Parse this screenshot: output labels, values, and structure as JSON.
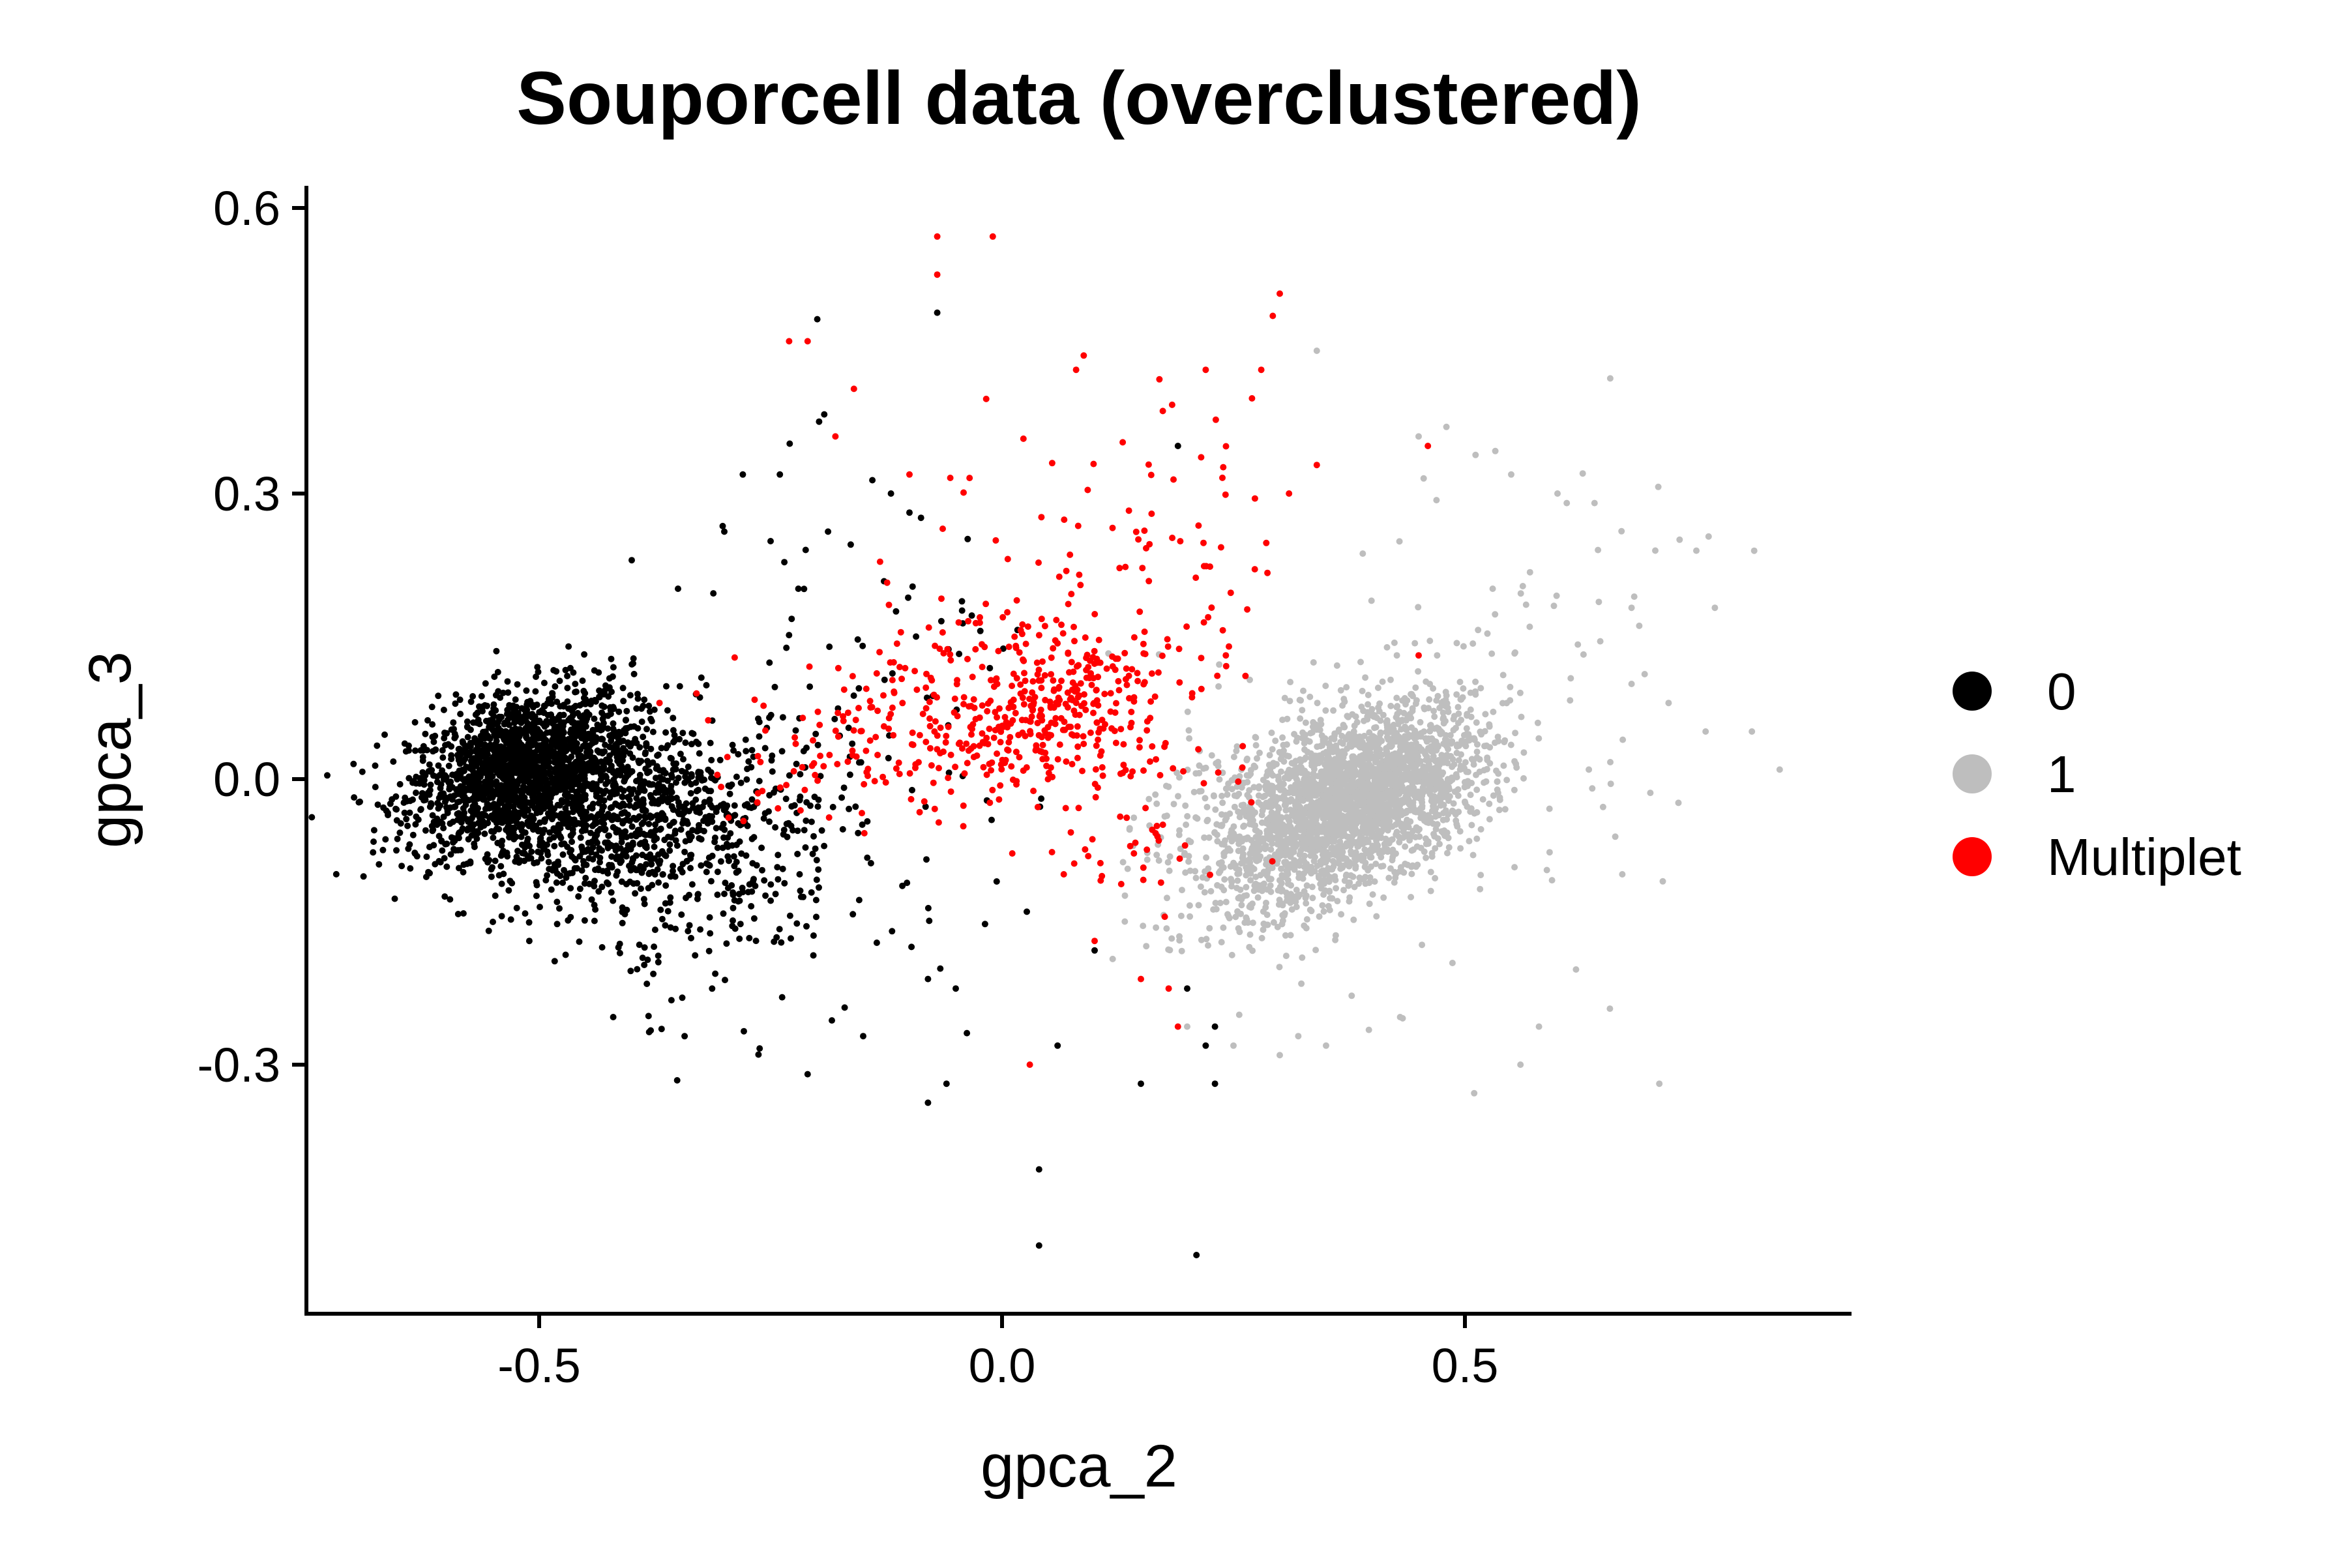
{
  "chart_data": {
    "type": "scatter",
    "title": "Souporcell data (overclustered)",
    "xlabel": "gpca_2",
    "ylabel": "gpca_3",
    "xlim": [
      -0.75,
      0.9
    ],
    "ylim": [
      -0.56,
      0.62
    ],
    "x_ticks": [
      -0.5,
      0.0,
      0.5
    ],
    "x_tick_labels": [
      "-0.5",
      "0.0",
      "0.5"
    ],
    "y_ticks": [
      -0.3,
      0.0,
      0.3,
      0.6
    ],
    "y_tick_labels": [
      "-0.3",
      "0.0",
      "0.3",
      "0.6"
    ],
    "grid": false,
    "legend_position": "right",
    "series": [
      {
        "name": "0",
        "color": "#000000",
        "clusters": [
          {
            "cx": -0.52,
            "cy": 0.01,
            "sx": 0.06,
            "sy": 0.04,
            "n": 1800
          },
          {
            "cx": -0.42,
            "cy": -0.04,
            "sx": 0.06,
            "sy": 0.045,
            "n": 700
          },
          {
            "cx": -0.3,
            "cy": -0.08,
            "sx": 0.06,
            "sy": 0.07,
            "n": 300
          },
          {
            "cx": -0.15,
            "cy": 0.0,
            "sx": 0.12,
            "sy": 0.15,
            "n": 120
          }
        ],
        "outliers": [
          {
            "x": -0.55,
            "y": -0.15
          },
          {
            "x": -0.42,
            "y": -0.25
          },
          {
            "x": -0.4,
            "y": 0.23
          },
          {
            "x": -0.35,
            "y": 0.2
          },
          {
            "x": -0.28,
            "y": 0.32
          },
          {
            "x": -0.24,
            "y": 0.32
          },
          {
            "x": -0.3,
            "y": 0.26
          },
          {
            "x": -0.25,
            "y": 0.25
          },
          {
            "x": -0.22,
            "y": 0.2
          },
          {
            "x": -0.21,
            "y": -0.31
          },
          {
            "x": -0.17,
            "y": -0.24
          },
          {
            "x": -0.15,
            "y": -0.27
          },
          {
            "x": -0.08,
            "y": -0.21
          },
          {
            "x": -0.05,
            "y": -0.22
          },
          {
            "x": -0.08,
            "y": -0.34
          },
          {
            "x": -0.06,
            "y": -0.32
          },
          {
            "x": -0.07,
            "y": 0.49
          },
          {
            "x": 0.04,
            "y": -0.41
          },
          {
            "x": 0.04,
            "y": -0.49
          },
          {
            "x": 0.06,
            "y": -0.28
          },
          {
            "x": 0.1,
            "y": -0.18
          },
          {
            "x": 0.15,
            "y": -0.32
          },
          {
            "x": 0.2,
            "y": -0.22
          },
          {
            "x": 0.21,
            "y": -0.5
          },
          {
            "x": 0.22,
            "y": -0.28
          },
          {
            "x": 0.23,
            "y": -0.32
          },
          {
            "x": 0.23,
            "y": -0.26
          },
          {
            "x": 0.19,
            "y": 0.35
          },
          {
            "x": -0.12,
            "y": 0.3
          },
          {
            "x": -0.1,
            "y": 0.28
          }
        ]
      },
      {
        "name": "1",
        "color": "#bebebe",
        "clusters": [
          {
            "cx": 0.4,
            "cy": -0.01,
            "sx": 0.06,
            "sy": 0.04,
            "n": 1800
          },
          {
            "cx": 0.32,
            "cy": -0.06,
            "sx": 0.06,
            "sy": 0.045,
            "n": 700
          },
          {
            "cx": 0.28,
            "cy": -0.05,
            "sx": 0.07,
            "sy": 0.07,
            "n": 250
          },
          {
            "cx": 0.48,
            "cy": 0.05,
            "sx": 0.12,
            "sy": 0.12,
            "n": 150
          }
        ],
        "outliers": [
          {
            "x": 0.34,
            "y": 0.45
          },
          {
            "x": 0.48,
            "y": 0.37
          },
          {
            "x": 0.45,
            "y": 0.36
          },
          {
            "x": 0.6,
            "y": 0.3
          },
          {
            "x": 0.55,
            "y": 0.32
          },
          {
            "x": 0.61,
            "y": 0.29
          },
          {
            "x": 0.64,
            "y": 0.29
          },
          {
            "x": 0.75,
            "y": 0.24
          },
          {
            "x": 0.77,
            "y": 0.18
          },
          {
            "x": 0.68,
            "y": 0.18
          },
          {
            "x": 0.68,
            "y": 0.1
          },
          {
            "x": 0.76,
            "y": 0.05
          },
          {
            "x": 0.81,
            "y": 0.05
          },
          {
            "x": 0.84,
            "y": 0.01
          },
          {
            "x": 0.71,
            "y": -0.32
          },
          {
            "x": 0.51,
            "y": -0.33
          },
          {
            "x": 0.58,
            "y": -0.26
          },
          {
            "x": 0.62,
            "y": -0.2
          },
          {
            "x": 0.67,
            "y": -0.1
          },
          {
            "x": 0.72,
            "y": 0.08
          },
          {
            "x": 0.56,
            "y": -0.3
          },
          {
            "x": 0.35,
            "y": -0.28
          },
          {
            "x": 0.3,
            "y": -0.29
          },
          {
            "x": 0.32,
            "y": -0.27
          },
          {
            "x": 0.25,
            "y": -0.28
          },
          {
            "x": 0.2,
            "y": -0.26
          },
          {
            "x": 0.43,
            "y": -0.25
          },
          {
            "x": 0.53,
            "y": 0.2
          },
          {
            "x": 0.47,
            "y": 0.13
          },
          {
            "x": 0.57,
            "y": 0.16
          }
        ]
      },
      {
        "name": "Multiplet",
        "color": "#ff0000",
        "clusters": [
          {
            "cx": 0.05,
            "cy": 0.07,
            "sx": 0.07,
            "sy": 0.035,
            "n": 260
          },
          {
            "cx": -0.1,
            "cy": 0.06,
            "sx": 0.09,
            "sy": 0.05,
            "n": 200
          },
          {
            "cx": 0.1,
            "cy": 0.2,
            "sx": 0.1,
            "sy": 0.1,
            "n": 120
          },
          {
            "cx": 0.15,
            "cy": 0.0,
            "sx": 0.06,
            "sy": 0.07,
            "n": 80
          }
        ],
        "outliers": [
          {
            "x": -0.07,
            "y": 0.57
          },
          {
            "x": -0.07,
            "y": 0.53
          },
          {
            "x": -0.01,
            "y": 0.57
          },
          {
            "x": 0.3,
            "y": 0.51
          },
          {
            "x": -0.23,
            "y": 0.46
          },
          {
            "x": -0.21,
            "y": 0.46
          },
          {
            "x": -0.16,
            "y": 0.41
          },
          {
            "x": 0.08,
            "y": 0.43
          },
          {
            "x": 0.22,
            "y": 0.43
          },
          {
            "x": 0.28,
            "y": 0.43
          },
          {
            "x": 0.17,
            "y": 0.42
          },
          {
            "x": 0.27,
            "y": 0.4
          },
          {
            "x": 0.46,
            "y": 0.35
          },
          {
            "x": -0.18,
            "y": 0.36
          },
          {
            "x": 0.34,
            "y": 0.33
          },
          {
            "x": 0.31,
            "y": 0.3
          },
          {
            "x": -0.1,
            "y": 0.32
          },
          {
            "x": 0.03,
            "y": -0.3
          },
          {
            "x": 0.1,
            "y": -0.17
          },
          {
            "x": 0.18,
            "y": -0.22
          },
          {
            "x": 0.19,
            "y": -0.26
          },
          {
            "x": 0.15,
            "y": -0.21
          },
          {
            "x": -0.37,
            "y": 0.08
          },
          {
            "x": -0.33,
            "y": 0.09
          },
          {
            "x": 0.45,
            "y": 0.13
          }
        ]
      }
    ]
  }
}
